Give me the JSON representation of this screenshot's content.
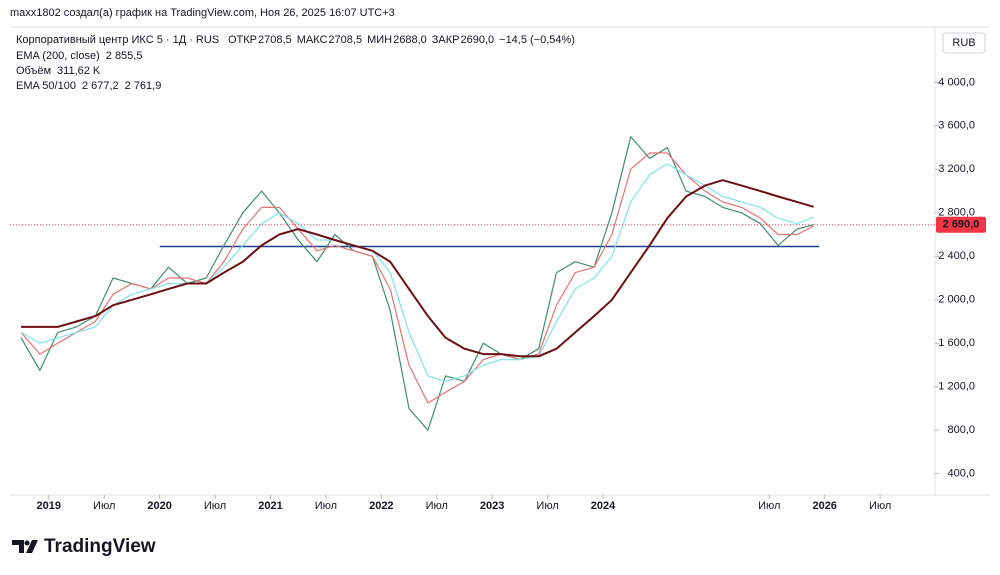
{
  "header": {
    "caption": "maxx1802 создал(а) график на TradingView.com, Ноя 26, 2025 16:07 UTC+3",
    "symbol": "Корпоративный центр ИКС 5 · 1Д · RUS",
    "ohlc": [
      {
        "label": "ОТКР",
        "value": "2708,5"
      },
      {
        "label": "МАКС",
        "value": "2708,5"
      },
      {
        "label": "МИН",
        "value": "2688,0"
      },
      {
        "label": "ЗАКР",
        "value": "2690,0"
      }
    ],
    "change": "−14,5 (−0,54%)",
    "indicators": [
      {
        "label": "EMA (200, close)",
        "values": [
          "2 855,5"
        ]
      },
      {
        "label": "Объём",
        "values": [
          "311,62 K"
        ]
      },
      {
        "label": "EMA 50/100",
        "values": [
          "2 677,2",
          "2 761,9"
        ]
      }
    ],
    "currency": "RUB",
    "logo": "TradingView"
  },
  "chart_data": {
    "type": "line",
    "x": [
      2018.75,
      2018.92,
      2019.08,
      2019.25,
      2019.42,
      2019.58,
      2019.75,
      2019.92,
      2020.08,
      2020.25,
      2020.42,
      2020.58,
      2020.75,
      2020.92,
      2021.08,
      2021.25,
      2021.42,
      2021.58,
      2021.75,
      2021.92,
      2022.08,
      2022.25,
      2022.42,
      2022.58,
      2022.75,
      2022.92,
      2023.08,
      2023.25,
      2023.42,
      2023.58,
      2023.75,
      2023.92,
      2024.08,
      2024.25,
      2024.42,
      2024.58,
      2024.75,
      2024.92,
      2025.08,
      2025.25,
      2025.42,
      2025.58,
      2025.75,
      2025.9
    ],
    "series": [
      {
        "name": "ЗАКР",
        "color": "#3f8f6e",
        "width": 1.2,
        "values": [
          1650,
          1350,
          1700,
          1750,
          1850,
          2200,
          2150,
          2100,
          2300,
          2150,
          2200,
          2500,
          2800,
          3000,
          2800,
          2550,
          2350,
          2600,
          2450,
          2400,
          1900,
          1000,
          800,
          1300,
          1250,
          1600,
          1500,
          1450,
          1550,
          2250,
          2350,
          2300,
          2800,
          3500,
          3300,
          3400,
          3000,
          2950,
          2850,
          2800,
          2700,
          2500,
          2650,
          2690
        ]
      },
      {
        "name": "EMA 50",
        "color": "#e57373",
        "width": 1.2,
        "values": [
          1700,
          1500,
          1600,
          1700,
          1800,
          2050,
          2150,
          2100,
          2200,
          2200,
          2150,
          2350,
          2650,
          2850,
          2850,
          2650,
          2450,
          2500,
          2450,
          2400,
          2100,
          1400,
          1050,
          1150,
          1250,
          1450,
          1500,
          1450,
          1500,
          1950,
          2250,
          2300,
          2600,
          3200,
          3350,
          3350,
          3150,
          3000,
          2900,
          2850,
          2750,
          2600,
          2600,
          2677.2
        ]
      },
      {
        "name": "EMA 100",
        "color": "#7fe3e8",
        "width": 1.2,
        "values": [
          1700,
          1600,
          1650,
          1700,
          1750,
          1950,
          2050,
          2100,
          2150,
          2150,
          2150,
          2300,
          2500,
          2700,
          2800,
          2700,
          2550,
          2550,
          2500,
          2450,
          2250,
          1700,
          1300,
          1250,
          1300,
          1400,
          1450,
          1450,
          1480,
          1800,
          2100,
          2200,
          2400,
          2900,
          3150,
          3250,
          3150,
          3050,
          2950,
          2900,
          2850,
          2750,
          2700,
          2761.9
        ]
      },
      {
        "name": "EMA (200, close)",
        "color": "#6d0f12",
        "width": 2,
        "values": [
          1750,
          1750,
          1750,
          1800,
          1850,
          1950,
          2000,
          2050,
          2100,
          2150,
          2150,
          2250,
          2350,
          2500,
          2600,
          2650,
          2600,
          2550,
          2500,
          2450,
          2350,
          2100,
          1850,
          1650,
          1550,
          1500,
          1500,
          1480,
          1480,
          1550,
          1700,
          1850,
          2000,
          2250,
          2500,
          2750,
          2950,
          3050,
          3100,
          3050,
          3000,
          2950,
          2900,
          2855.5
        ]
      }
    ],
    "hline": {
      "value": 2490,
      "from": 2020.0,
      "to": 2025.95,
      "color": "#1f3f8f"
    },
    "last_price": {
      "value": 2690,
      "label": "2 690,0",
      "color": "#f23645"
    },
    "xlim": [
      2018.65,
      2026.95
    ],
    "xticks": [
      2019,
      {
        "value": 2019.5,
        "label": "Июл"
      },
      2020,
      {
        "value": 2020.5,
        "label": "Июл"
      },
      2021,
      {
        "value": 2021.5,
        "label": "Июл"
      },
      2022,
      {
        "value": 2022.5,
        "label": "Июл"
      },
      2023,
      {
        "value": 2023.5,
        "label": "Июл"
      },
      2024,
      {
        "value": 2025.5,
        "label": "Июл"
      },
      2026,
      {
        "value": 2026.5,
        "label": "Июл"
      }
    ],
    "ylim": [
      250,
      4500
    ],
    "yticks": [
      {
        "value": 400,
        "label": "400,0"
      },
      {
        "value": 800,
        "label": "800,0"
      },
      {
        "value": 1200,
        "label": "1 200,0"
      },
      {
        "value": 1600,
        "label": "1 600,0"
      },
      {
        "value": 2000,
        "label": "2 000,0"
      },
      {
        "value": 2400,
        "label": "2 400,0"
      },
      {
        "value": 2800,
        "label": "2 800,0"
      },
      {
        "value": 3200,
        "label": "3 200,0"
      },
      {
        "value": 3600,
        "label": "3 600,0"
      },
      {
        "value": 4000,
        "label": "4 000,0"
      }
    ]
  }
}
